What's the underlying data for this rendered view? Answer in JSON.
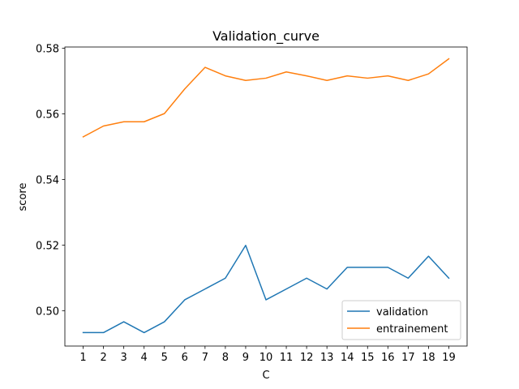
{
  "chart_data": {
    "type": "line",
    "title": "Validation_curve",
    "xlabel": "C",
    "ylabel": "score",
    "x": [
      1,
      2,
      3,
      4,
      5,
      6,
      7,
      8,
      9,
      10,
      11,
      12,
      13,
      14,
      15,
      16,
      17,
      18,
      19
    ],
    "xlim": [
      0.1,
      19.9
    ],
    "ylim": [
      0.4892,
      0.5804
    ],
    "yticks": [
      0.5,
      0.52,
      0.54,
      0.56,
      0.58
    ],
    "ytick_labels": [
      "0.50",
      "0.52",
      "0.54",
      "0.56",
      "0.58"
    ],
    "grid": false,
    "legend_position": "lower-right",
    "series": [
      {
        "name": "validation",
        "color": "#1f77b4",
        "values": [
          0.4933,
          0.4933,
          0.4966,
          0.4933,
          0.4966,
          0.5033,
          0.5066,
          0.5099,
          0.5199,
          0.5033,
          0.5066,
          0.5099,
          0.5066,
          0.5132,
          0.5132,
          0.5132,
          0.5099,
          0.5166,
          0.5099
        ]
      },
      {
        "name": "entrainement",
        "color": "#ff7f0e",
        "values": [
          0.553,
          0.5563,
          0.5576,
          0.5576,
          0.5601,
          0.5676,
          0.5742,
          0.5716,
          0.5702,
          0.5709,
          0.5728,
          0.5716,
          0.5702,
          0.5716,
          0.5709,
          0.5716,
          0.5702,
          0.5722,
          0.5768
        ]
      }
    ]
  }
}
